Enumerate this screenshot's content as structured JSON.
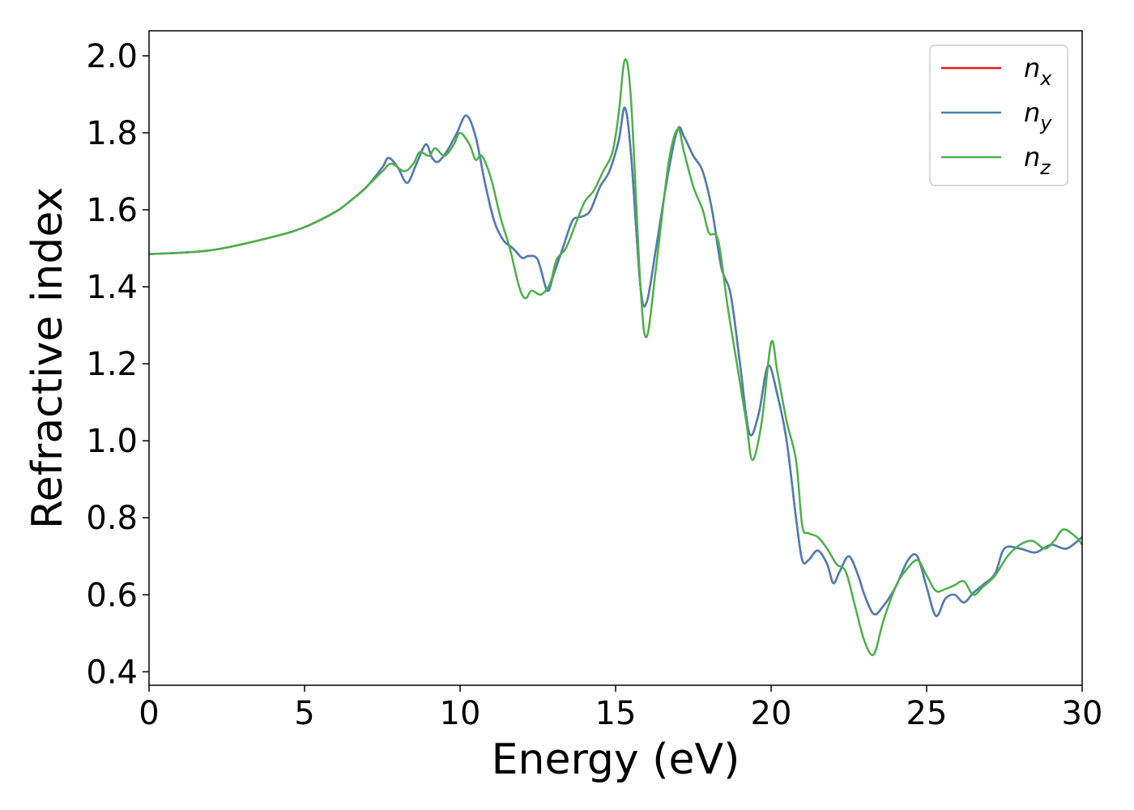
{
  "chart_data": {
    "type": "line",
    "title": "",
    "xlabel": "Energy (eV)",
    "ylabel": "Refractive index",
    "xlim": [
      0,
      30
    ],
    "ylim": [
      0.365,
      2.065
    ],
    "xticks": [
      0,
      5,
      10,
      15,
      20,
      25,
      30
    ],
    "xtick_labels": [
      "0",
      "5",
      "10",
      "15",
      "20",
      "25",
      "30"
    ],
    "yticks": [
      0.4,
      0.6,
      0.8,
      1.0,
      1.2,
      1.4,
      1.6,
      1.8,
      2.0
    ],
    "ytick_labels": [
      "0.4",
      "0.6",
      "0.8",
      "1.0",
      "1.2",
      "1.4",
      "1.6",
      "1.8",
      "2.0"
    ],
    "grid": false,
    "legend": {
      "placement": "top-right",
      "entries": [
        {
          "base": "n",
          "sub": "x"
        },
        {
          "base": "n",
          "sub": "y"
        },
        {
          "base": "n",
          "sub": "z"
        }
      ]
    },
    "series": [
      {
        "name": "n_x",
        "color": "#e41a1c",
        "x": [
          0,
          2,
          4,
          5,
          6,
          6.5,
          7,
          7.5,
          7.7,
          8,
          8.3,
          8.6,
          8.9,
          9.1,
          9.3,
          9.6,
          9.9,
          10.2,
          10.5,
          10.8,
          11.1,
          11.4,
          11.7,
          12.0,
          12.2,
          12.5,
          12.8,
          13.0,
          13.3,
          13.6,
          13.8,
          14.0,
          14.2,
          14.5,
          14.8,
          15.1,
          15.3,
          15.5,
          15.8,
          16.0,
          16.3,
          16.7,
          17.0,
          17.2,
          17.5,
          17.8,
          18.1,
          18.4,
          18.7,
          19.0,
          19.3,
          19.6,
          19.9,
          20.2,
          20.5,
          20.8,
          21.0,
          21.2,
          21.5,
          21.8,
          22.0,
          22.2,
          22.5,
          22.8,
          23.0,
          23.3,
          23.6,
          24.0,
          24.4,
          24.7,
          25.0,
          25.3,
          25.6,
          25.9,
          26.2,
          26.5,
          26.8,
          27.2,
          27.5,
          28.0,
          28.5,
          29.0,
          29.5,
          30
        ],
        "values": [
          1.485,
          1.495,
          1.53,
          1.555,
          1.595,
          1.625,
          1.66,
          1.71,
          1.735,
          1.71,
          1.67,
          1.72,
          1.77,
          1.735,
          1.725,
          1.755,
          1.8,
          1.845,
          1.79,
          1.67,
          1.57,
          1.52,
          1.5,
          1.475,
          1.48,
          1.47,
          1.39,
          1.43,
          1.5,
          1.57,
          1.58,
          1.585,
          1.6,
          1.66,
          1.7,
          1.78,
          1.865,
          1.74,
          1.4,
          1.36,
          1.5,
          1.7,
          1.81,
          1.79,
          1.74,
          1.7,
          1.6,
          1.45,
          1.38,
          1.2,
          1.02,
          1.07,
          1.195,
          1.12,
          1.0,
          0.8,
          0.69,
          0.69,
          0.715,
          0.68,
          0.63,
          0.66,
          0.7,
          0.65,
          0.6,
          0.55,
          0.57,
          0.62,
          0.69,
          0.7,
          0.62,
          0.545,
          0.59,
          0.6,
          0.58,
          0.605,
          0.625,
          0.655,
          0.72,
          0.72,
          0.71,
          0.73,
          0.72,
          0.75
        ]
      },
      {
        "name": "n_y",
        "color": "#4a7fb5",
        "x": [
          0,
          2,
          4,
          5,
          6,
          6.5,
          7,
          7.5,
          7.7,
          8,
          8.3,
          8.6,
          8.9,
          9.1,
          9.3,
          9.6,
          9.9,
          10.2,
          10.5,
          10.8,
          11.1,
          11.4,
          11.7,
          12.0,
          12.2,
          12.5,
          12.8,
          13.0,
          13.3,
          13.6,
          13.8,
          14.0,
          14.2,
          14.5,
          14.8,
          15.1,
          15.3,
          15.5,
          15.8,
          16.0,
          16.3,
          16.7,
          17.0,
          17.2,
          17.5,
          17.8,
          18.1,
          18.4,
          18.7,
          19.0,
          19.3,
          19.6,
          19.9,
          20.2,
          20.5,
          20.8,
          21.0,
          21.2,
          21.5,
          21.8,
          22.0,
          22.2,
          22.5,
          22.8,
          23.0,
          23.3,
          23.6,
          24.0,
          24.4,
          24.7,
          25.0,
          25.3,
          25.6,
          25.9,
          26.2,
          26.5,
          26.8,
          27.2,
          27.5,
          28.0,
          28.5,
          29.0,
          29.5,
          30
        ],
        "values": [
          1.485,
          1.495,
          1.53,
          1.555,
          1.595,
          1.625,
          1.66,
          1.71,
          1.735,
          1.71,
          1.67,
          1.72,
          1.77,
          1.735,
          1.725,
          1.755,
          1.8,
          1.845,
          1.79,
          1.67,
          1.57,
          1.52,
          1.5,
          1.475,
          1.48,
          1.47,
          1.39,
          1.43,
          1.5,
          1.57,
          1.58,
          1.585,
          1.6,
          1.66,
          1.7,
          1.78,
          1.865,
          1.74,
          1.4,
          1.36,
          1.5,
          1.7,
          1.81,
          1.79,
          1.74,
          1.7,
          1.6,
          1.45,
          1.38,
          1.2,
          1.02,
          1.07,
          1.195,
          1.12,
          1.0,
          0.8,
          0.69,
          0.69,
          0.715,
          0.68,
          0.63,
          0.66,
          0.7,
          0.65,
          0.6,
          0.55,
          0.57,
          0.62,
          0.69,
          0.7,
          0.62,
          0.545,
          0.59,
          0.6,
          0.58,
          0.605,
          0.625,
          0.655,
          0.72,
          0.72,
          0.71,
          0.73,
          0.72,
          0.75
        ]
      },
      {
        "name": "n_z",
        "color": "#4daf4a",
        "x": [
          0,
          2,
          4,
          5,
          6,
          6.5,
          7,
          7.5,
          7.8,
          8.2,
          8.5,
          8.7,
          9.0,
          9.2,
          9.5,
          9.8,
          10.0,
          10.3,
          10.5,
          10.7,
          11.0,
          11.3,
          11.6,
          11.9,
          12.1,
          12.3,
          12.6,
          12.9,
          13.1,
          13.4,
          13.7,
          14.0,
          14.3,
          14.6,
          14.9,
          15.1,
          15.3,
          15.5,
          15.8,
          16.0,
          16.3,
          16.7,
          17.0,
          17.2,
          17.5,
          17.8,
          18.0,
          18.3,
          18.6,
          18.9,
          19.2,
          19.4,
          19.7,
          20.0,
          20.2,
          20.5,
          20.8,
          21.0,
          21.2,
          21.5,
          21.8,
          22.1,
          22.4,
          22.7,
          23.0,
          23.3,
          23.6,
          24.0,
          24.3,
          24.7,
          25.0,
          25.3,
          25.6,
          25.9,
          26.2,
          26.5,
          26.8,
          27.2,
          27.6,
          28.0,
          28.4,
          28.8,
          29.1,
          29.4,
          29.8,
          30
        ],
        "values": [
          1.485,
          1.495,
          1.53,
          1.555,
          1.595,
          1.625,
          1.66,
          1.7,
          1.72,
          1.7,
          1.72,
          1.75,
          1.74,
          1.76,
          1.74,
          1.77,
          1.8,
          1.77,
          1.73,
          1.74,
          1.68,
          1.58,
          1.5,
          1.4,
          1.37,
          1.39,
          1.38,
          1.41,
          1.47,
          1.5,
          1.56,
          1.62,
          1.65,
          1.7,
          1.75,
          1.85,
          1.99,
          1.88,
          1.4,
          1.27,
          1.45,
          1.72,
          1.81,
          1.75,
          1.66,
          1.6,
          1.54,
          1.52,
          1.35,
          1.2,
          1.05,
          0.95,
          1.05,
          1.255,
          1.18,
          1.05,
          0.95,
          0.78,
          0.76,
          0.75,
          0.72,
          0.68,
          0.66,
          0.57,
          0.48,
          0.445,
          0.53,
          0.62,
          0.66,
          0.69,
          0.65,
          0.61,
          0.615,
          0.625,
          0.635,
          0.6,
          0.62,
          0.65,
          0.7,
          0.73,
          0.74,
          0.72,
          0.74,
          0.77,
          0.75,
          0.73
        ]
      }
    ]
  }
}
